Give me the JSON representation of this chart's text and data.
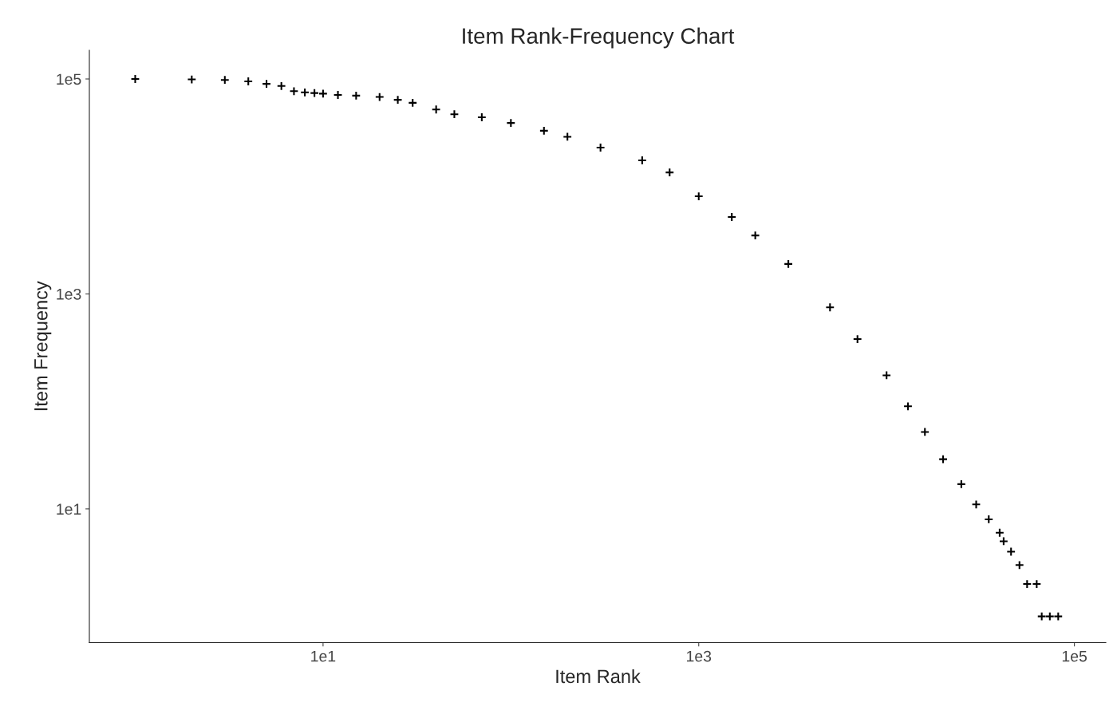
{
  "chart_data": {
    "type": "scatter",
    "title": "Item Rank-Frequency Chart",
    "xlabel": "Item Rank",
    "ylabel": "Item Frequency",
    "x": [
      1,
      2,
      3,
      4,
      5,
      6,
      7,
      8,
      9,
      10,
      12,
      15,
      20,
      25,
      30,
      40,
      50,
      70,
      100,
      150,
      200,
      300,
      500,
      700,
      1000,
      1500,
      2000,
      3000,
      5000,
      7000,
      10000,
      13000,
      16000,
      20000,
      25000,
      30000,
      35000,
      40000,
      42000,
      46000,
      51000,
      56000,
      63000,
      67000,
      74000,
      82000
    ],
    "values": [
      100000,
      99000,
      98000,
      95000,
      90000,
      86000,
      77000,
      75000,
      74000,
      73000,
      71000,
      70000,
      68000,
      64000,
      60000,
      52000,
      47000,
      44000,
      39000,
      33000,
      29000,
      23000,
      17500,
      13500,
      8100,
      5200,
      3500,
      1900,
      750,
      380,
      175,
      90,
      52,
      29,
      17,
      11,
      8,
      6,
      5,
      4,
      3,
      2,
      2,
      1,
      1,
      1
    ],
    "color": "#000000",
    "marker": "cross",
    "log": "xy",
    "grid": false,
    "xlim": [
      0.57,
      147000
    ],
    "ylim": [
      0.57,
      185000
    ],
    "xticks": [
      {
        "value": 10,
        "label": "1e1"
      },
      {
        "value": 1000,
        "label": "1e3"
      },
      {
        "value": 100000,
        "label": "1e5"
      }
    ],
    "yticks": [
      {
        "value": 10,
        "label": "1e1"
      },
      {
        "value": 1000,
        "label": "1e3"
      },
      {
        "value": 100000,
        "label": "1e5"
      }
    ]
  }
}
